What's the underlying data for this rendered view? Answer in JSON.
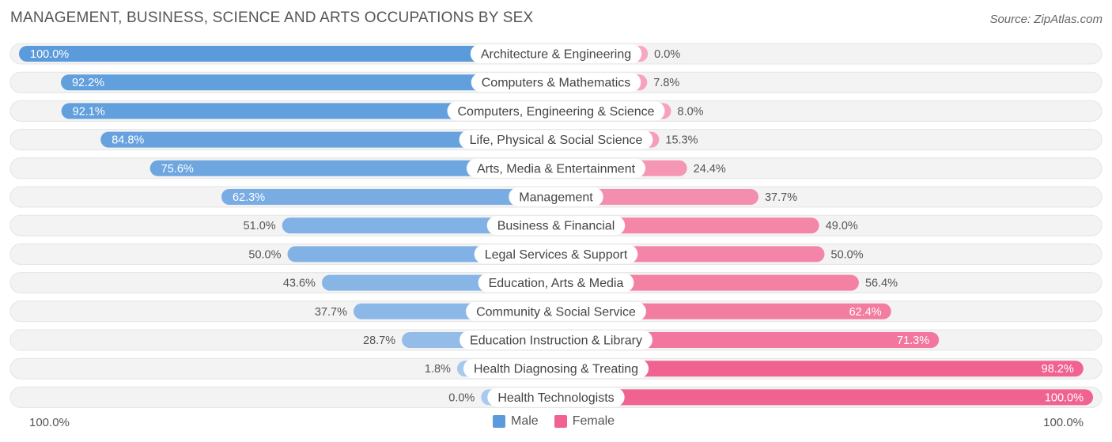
{
  "title": "MANAGEMENT, BUSINESS, SCIENCE AND ARTS OCCUPATIONS BY SEX",
  "source": "Source: ZipAtlas.com",
  "axis": {
    "left_label": "100.0%",
    "right_label": "100.0%"
  },
  "legend": {
    "male": "Male",
    "female": "Female"
  },
  "colors": {
    "male_strong": "#5b9bdc",
    "male_light": "#a9c9ee",
    "female_strong": "#f0628f",
    "female_light": "#f7a8c0",
    "row_bg": "#f2f2f2"
  },
  "chart_data": {
    "type": "bar",
    "orientation": "diverging-horizontal",
    "categories": [
      "Architecture & Engineering",
      "Computers & Mathematics",
      "Computers, Engineering & Science",
      "Life, Physical & Social Science",
      "Arts, Media & Entertainment",
      "Management",
      "Business & Financial",
      "Legal Services & Support",
      "Education, Arts & Media",
      "Community & Social Service",
      "Education Instruction & Library",
      "Health Diagnosing & Treating",
      "Health Technologists"
    ],
    "series": [
      {
        "name": "Male",
        "values": [
          100.0,
          92.2,
          92.1,
          84.8,
          75.6,
          62.3,
          51.0,
          50.0,
          43.6,
          37.7,
          28.7,
          1.8,
          0.0
        ]
      },
      {
        "name": "Female",
        "values": [
          0.0,
          7.8,
          8.0,
          15.3,
          24.4,
          37.7,
          49.0,
          50.0,
          56.4,
          62.4,
          71.3,
          98.2,
          100.0
        ]
      }
    ],
    "male_labels": [
      "100.0%",
      "92.2%",
      "92.1%",
      "84.8%",
      "75.6%",
      "62.3%",
      "51.0%",
      "50.0%",
      "43.6%",
      "37.7%",
      "28.7%",
      "1.8%",
      "0.0%"
    ],
    "female_labels": [
      "0.0%",
      "7.8%",
      "8.0%",
      "15.3%",
      "24.4%",
      "37.7%",
      "49.0%",
      "50.0%",
      "56.4%",
      "62.4%",
      "71.3%",
      "98.2%",
      "100.0%"
    ],
    "xlim": [
      0,
      100
    ],
    "legend_position": "bottom-center",
    "grid": false
  }
}
